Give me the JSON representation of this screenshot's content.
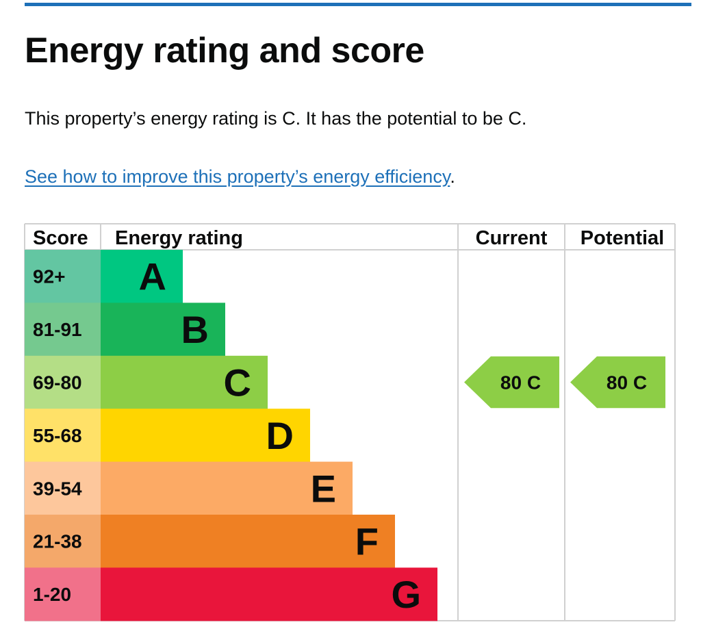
{
  "page": {
    "title": "Energy rating and score",
    "summary": "This property’s energy rating is C. It has the potential to be C.",
    "improve_link": "See how to improve this property’s energy efficiency",
    "improve_suffix": "."
  },
  "colors": {
    "accent_rule": "#1d70b8",
    "link": "#1d70b8",
    "grid": "#d0d0d0"
  },
  "chart_data": {
    "type": "table",
    "headers": {
      "score": "Score",
      "rating": "Energy rating",
      "current": "Current",
      "potential": "Potential"
    },
    "bands": [
      {
        "score": "92+",
        "letter": "A",
        "bar": "#00c781",
        "cell": "#63c6a2"
      },
      {
        "score": "81-91",
        "letter": "B",
        "bar": "#19b459",
        "cell": "#75c98f"
      },
      {
        "score": "69-80",
        "letter": "C",
        "bar": "#8dce46",
        "cell": "#b4de86"
      },
      {
        "score": "55-68",
        "letter": "D",
        "bar": "#ffd500",
        "cell": "#ffe168"
      },
      {
        "score": "39-54",
        "letter": "E",
        "bar": "#fcaa65",
        "cell": "#fdc79c"
      },
      {
        "score": "21-38",
        "letter": "F",
        "bar": "#ef8023",
        "cell": "#f4a86a"
      },
      {
        "score": "1-20",
        "letter": "G",
        "bar": "#e9153b",
        "cell": "#f1718a"
      }
    ],
    "current": {
      "score": 80,
      "letter": "C",
      "label": "80  C",
      "color": "#8dce46"
    },
    "potential": {
      "score": 80,
      "letter": "C",
      "label": "80  C",
      "color": "#8dce46"
    }
  }
}
